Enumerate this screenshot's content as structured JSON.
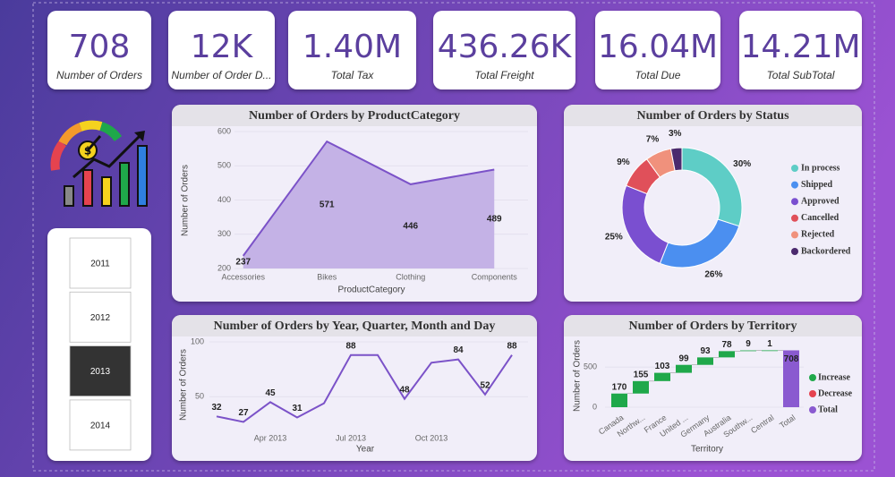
{
  "kpis": [
    {
      "value": "708",
      "label": "Number of Orders"
    },
    {
      "value": "12K",
      "label": "Number of Order D..."
    },
    {
      "value": "1.40M",
      "label": "Total Tax"
    },
    {
      "value": "436.26K",
      "label": "Total Freight"
    },
    {
      "value": "16.04M",
      "label": "Total Due"
    },
    {
      "value": "14.21M",
      "label": "Total SubTotal"
    }
  ],
  "slicer": {
    "items": [
      "2011",
      "2012",
      "2013",
      "2014"
    ],
    "selected": "2013"
  },
  "chart_data": [
    {
      "type": "area",
      "title": "Number of Orders by ProductCategory",
      "categories": [
        "Accessories",
        "Bikes",
        "Clothing",
        "Components"
      ],
      "values": [
        237,
        571,
        446,
        489
      ],
      "color": "#7b52c8",
      "x_label": "ProductCategory",
      "y_label": "Number of Orders",
      "ylim": [
        200,
        600
      ],
      "yticks": [
        200,
        300,
        400,
        500,
        600
      ]
    },
    {
      "type": "pie",
      "hole": true,
      "title": "Number of Orders by Status",
      "categories": [
        "In process",
        "Shipped",
        "Approved",
        "Cancelled",
        "Rejected",
        "Backordered"
      ],
      "values": [
        30,
        26,
        25,
        9,
        7,
        3
      ],
      "value_labels": [
        "30%",
        "26%",
        "25%",
        "9%",
        "7%",
        "3%"
      ],
      "colors": [
        "#5ecdc6",
        "#4b8ff0",
        "#7a4fd0",
        "#e0505a",
        "#f0917c",
        "#4b2a6e"
      ]
    },
    {
      "type": "line",
      "title": "Number of Orders by Year, Quarter, Month and Day",
      "categories": [
        null,
        null,
        "Apr 2013",
        null,
        null,
        "Jul 2013",
        null,
        null,
        "Oct 2013",
        null,
        null,
        null
      ],
      "values": [
        32,
        27,
        45,
        31,
        44,
        88,
        88,
        48,
        81,
        84,
        52,
        88
      ],
      "value_labels": [
        "32",
        "27",
        "45",
        "31",
        null,
        "88",
        null,
        "48",
        null,
        "84",
        "52",
        "88"
      ],
      "color": "#7b52c8",
      "x_label": "Year",
      "y_label": "Number of Orders",
      "ylim": [
        20,
        100
      ],
      "yticks": [
        50,
        100
      ]
    },
    {
      "type": "waterfall",
      "title": "Number of Orders by Territory",
      "categories": [
        "Canada",
        "Northw...",
        "France",
        "United ...",
        "Germany",
        "Australia",
        "Southw...",
        "Central",
        "Total"
      ],
      "values": [
        170,
        155,
        103,
        99,
        93,
        78,
        9,
        1,
        708
      ],
      "legend": [
        {
          "name": "Increase",
          "color": "#1fa84a"
        },
        {
          "name": "Decrease",
          "color": "#e5434f"
        },
        {
          "name": "Total",
          "color": "#8a5ad0"
        }
      ],
      "x_label": "Territory",
      "y_label": "Number of Orders",
      "ylim": [
        0,
        780
      ],
      "yticks": [
        0,
        500
      ]
    }
  ]
}
